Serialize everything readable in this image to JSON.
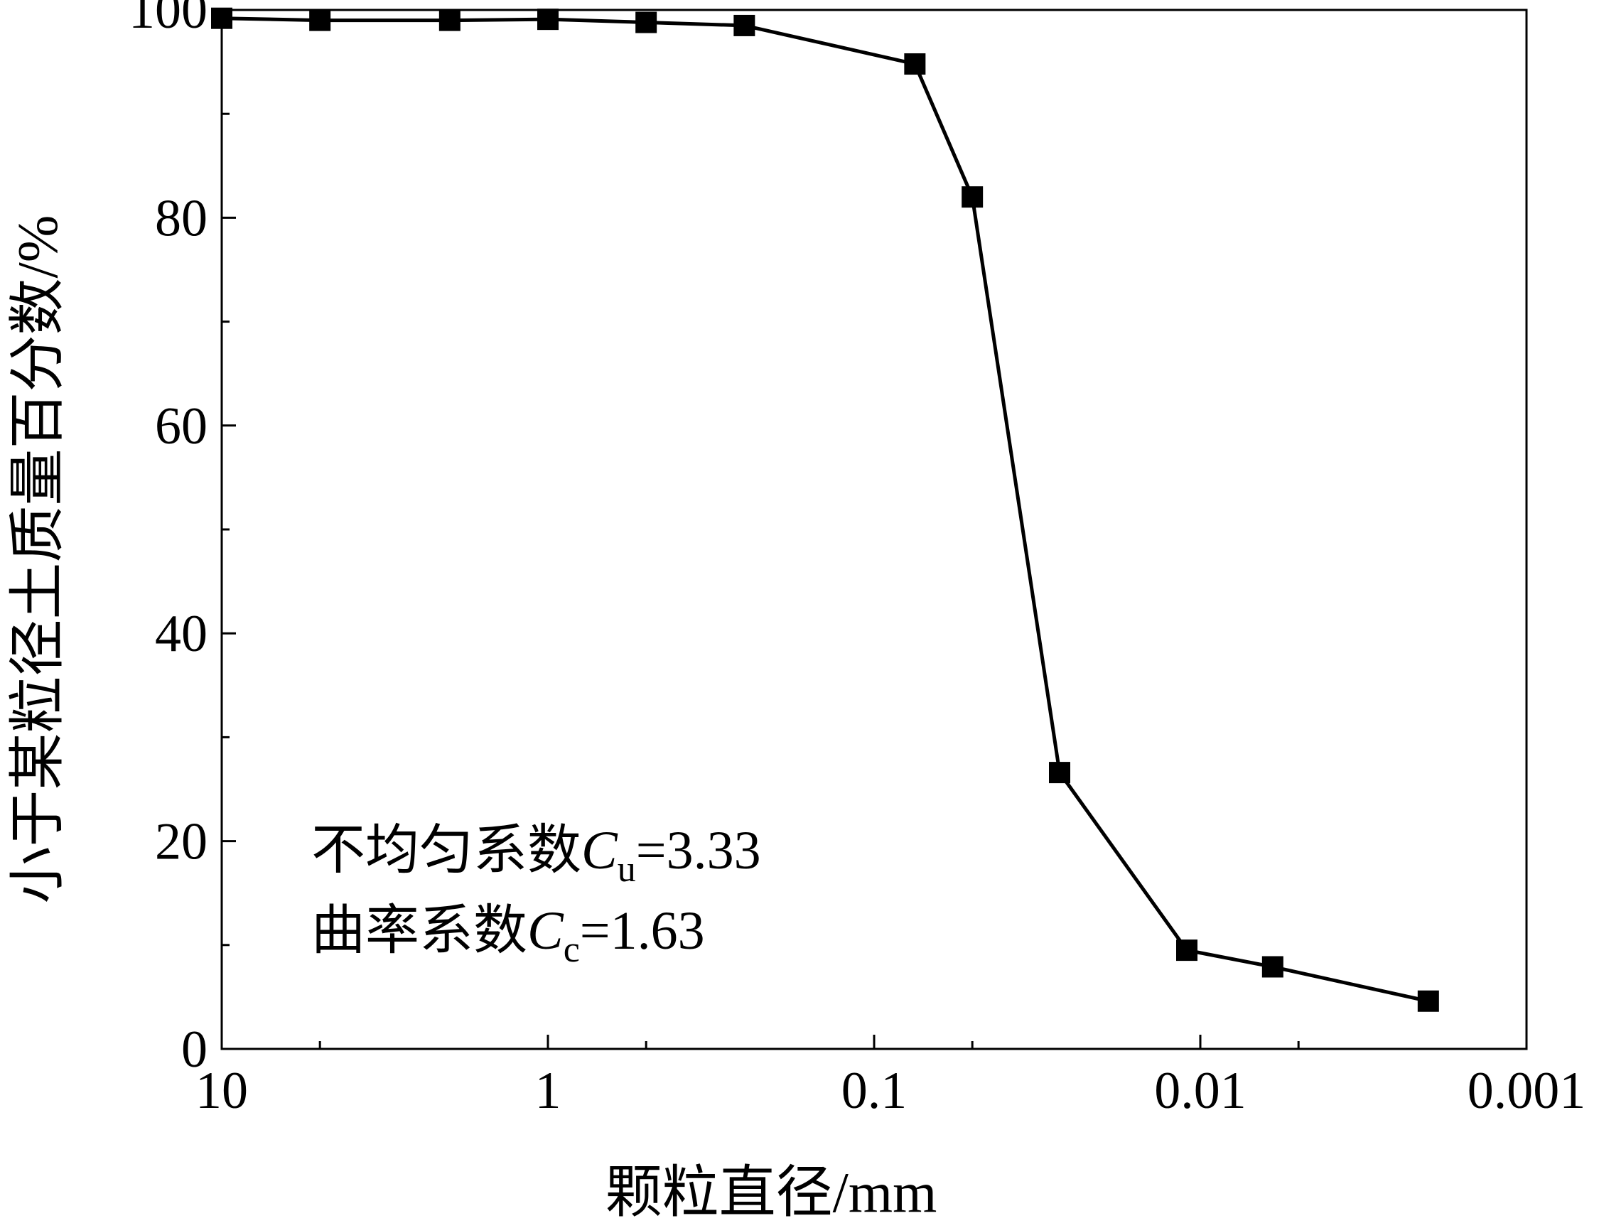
{
  "chart_data": {
    "type": "line",
    "xlabel": "颗粒直径/mm",
    "ylabel": "小于某粒径土质量百分数/%",
    "x_scale": "log",
    "x_reversed": true,
    "xlim": [
      10,
      0.001
    ],
    "ylim": [
      0,
      100
    ],
    "x_ticks": [
      10,
      1,
      0.1,
      0.01,
      0.001
    ],
    "x_tick_labels": [
      "10",
      "1",
      "0.1",
      "0.01",
      "0.001"
    ],
    "y_ticks": [
      0,
      20,
      40,
      60,
      80,
      100
    ],
    "y_tick_labels": [
      "0",
      "20",
      "40",
      "60",
      "80",
      "100"
    ],
    "grid": false,
    "marker": "square",
    "color": "#000000",
    "series": [
      {
        "x": [
          10,
          5,
          2,
          1,
          0.5,
          0.25,
          0.075,
          0.05,
          0.027,
          0.011,
          0.006,
          0.002
        ],
        "y": [
          99.2,
          99.0,
          99.0,
          99.1,
          98.8,
          98.5,
          94.8,
          82.0,
          26.6,
          9.5,
          7.9,
          4.6
        ]
      }
    ],
    "annotations": [
      {
        "prefix": "不均匀系数",
        "var": "C",
        "sub": "u",
        "rest": "=3.33"
      },
      {
        "prefix": "曲率系数",
        "var": "C",
        "sub": "c",
        "rest": "=1.63"
      }
    ]
  }
}
